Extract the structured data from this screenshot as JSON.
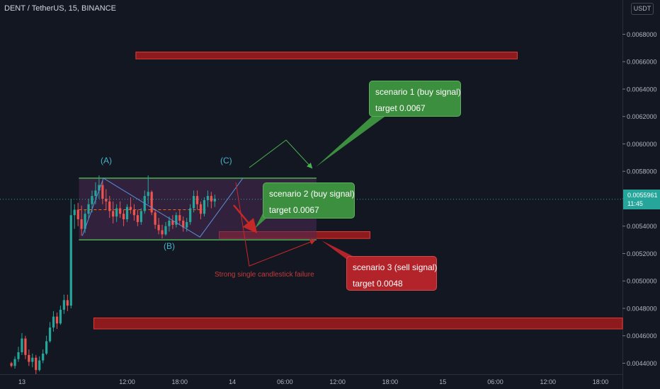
{
  "header": {
    "title": "DENT / TetherUS, 15, BINANCE",
    "currency": "USDT"
  },
  "price_label": {
    "value": "0.0055961",
    "countdown": "11:45",
    "color": "#26a69a"
  },
  "colors": {
    "background": "#131722",
    "up": "#26a69a",
    "down": "#ef5350",
    "zone": "#b71c1c",
    "box": "#4a2a52",
    "channel": "#4caf50",
    "wave_label": "#48b2c9",
    "failure_text": "#c23a3a"
  },
  "annotations": {
    "wave_labels": [
      "(A)",
      "(B)",
      "(C)"
    ],
    "failure_note": "Strong single candlestick failure",
    "scenarios": [
      {
        "title": "scenario 1 (buy signal)",
        "target": "target 0.0067",
        "color": "#3c8f3e"
      },
      {
        "title": "scenario 2 (buy signal)",
        "target": "target 0.0067",
        "color": "#3c8f3e"
      },
      {
        "title": "scenario 3 (sell signal)",
        "target": "target   0.0048",
        "color": "#b2232a"
      }
    ]
  },
  "chart_data": {
    "type": "candlestick",
    "symbol": "DENT / TetherUS",
    "interval": "15",
    "exchange": "BINANCE",
    "y_ticks": [
      "0.0044000",
      "0.0046000",
      "0.0048000",
      "0.0050000",
      "0.0052000",
      "0.0054000",
      "0.0056000",
      "0.0058000",
      "0.0060000",
      "0.0062000",
      "0.0064000",
      "0.0066000",
      "0.0068000"
    ],
    "y_range": [
      0.00432,
      0.00705
    ],
    "x_ticks": [
      "13",
      "12:00",
      "18:00",
      "14",
      "06:00",
      "12:00",
      "18:00",
      "15",
      "06:00",
      "12:00",
      "18:00"
    ],
    "x_tick_hours": [
      0,
      12,
      18,
      24,
      30,
      36,
      42,
      48,
      54,
      60,
      66
    ],
    "x_range_hours": [
      -2.5,
      68.5
    ],
    "last_price": 0.0055961,
    "zones": [
      {
        "type": "resistance",
        "x": [
          13,
          56.5
        ],
        "y": [
          0.00662,
          0.00667
        ]
      },
      {
        "type": "support",
        "x": [
          22.5,
          39.7
        ],
        "y": [
          0.00531,
          0.00536
        ]
      },
      {
        "type": "support",
        "x": [
          8.2,
          68.5
        ],
        "y": [
          0.00465,
          0.00473
        ]
      }
    ],
    "channel": {
      "x": [
        6.5,
        33.6
      ],
      "top": 0.00575,
      "bottom": 0.0053,
      "midline": 0.00552
    },
    "wave_points": [
      {
        "label": "(A)",
        "time_h": 9.3,
        "price": 0.00575
      },
      {
        "label": "(B)",
        "time_h": 20.3,
        "price": 0.00532
      },
      {
        "label": "(C)",
        "time_h": 25.2,
        "price": 0.00575
      }
    ],
    "series": [
      {
        "name": "DENT / TetherUS",
        "ohlc": [
          [
            0.0044,
            0.00441,
            0.00437,
            0.00438
          ],
          [
            0.00438,
            0.00445,
            0.00436,
            0.00443
          ],
          [
            0.00443,
            0.00452,
            0.00441,
            0.00448
          ],
          [
            0.00448,
            0.00462,
            0.00446,
            0.00458
          ],
          [
            0.00458,
            0.0046,
            0.00443,
            0.00446
          ],
          [
            0.00446,
            0.0045,
            0.00438,
            0.00441
          ],
          [
            0.00441,
            0.00447,
            0.00437,
            0.00444
          ],
          [
            0.00444,
            0.00446,
            0.00432,
            0.00435
          ],
          [
            0.00435,
            0.00445,
            0.00434,
            0.00442
          ],
          [
            0.00442,
            0.0045,
            0.0044,
            0.00447
          ],
          [
            0.00447,
            0.0046,
            0.00446,
            0.00456
          ],
          [
            0.00456,
            0.0047,
            0.00455,
            0.00466
          ],
          [
            0.00466,
            0.00478,
            0.00463,
            0.00474
          ],
          [
            0.00474,
            0.00477,
            0.00465,
            0.00469
          ],
          [
            0.00469,
            0.00482,
            0.00468,
            0.00479
          ],
          [
            0.00479,
            0.0049,
            0.00476,
            0.00486
          ],
          [
            0.00486,
            0.0049,
            0.00478,
            0.00482
          ],
          [
            0.00482,
            0.0056,
            0.0048,
            0.00548
          ],
          [
            0.00548,
            0.00556,
            0.00538,
            0.00552
          ],
          [
            0.00552,
            0.00557,
            0.0054,
            0.00545
          ],
          [
            0.00545,
            0.00555,
            0.00533,
            0.00538
          ],
          [
            0.00538,
            0.00552,
            0.00535,
            0.00549
          ],
          [
            0.00549,
            0.0056,
            0.00545,
            0.00556
          ],
          [
            0.00556,
            0.00566,
            0.0055,
            0.00562
          ],
          [
            0.00562,
            0.00572,
            0.00556,
            0.00566
          ],
          [
            0.00566,
            0.00577,
            0.0056,
            0.0057
          ],
          [
            0.0057,
            0.00573,
            0.00556,
            0.0056
          ],
          [
            0.0056,
            0.00567,
            0.00552,
            0.00558
          ],
          [
            0.00558,
            0.00562,
            0.00546,
            0.00551
          ],
          [
            0.00551,
            0.00558,
            0.00542,
            0.00547
          ],
          [
            0.00547,
            0.00556,
            0.00543,
            0.00553
          ],
          [
            0.00553,
            0.00558,
            0.00546,
            0.00549
          ],
          [
            0.00549,
            0.00552,
            0.0054,
            0.00545
          ],
          [
            0.00545,
            0.00556,
            0.00543,
            0.00554
          ],
          [
            0.00554,
            0.00561,
            0.00549,
            0.00552
          ],
          [
            0.00552,
            0.00556,
            0.00544,
            0.00548
          ],
          [
            0.00548,
            0.00552,
            0.0054,
            0.00543
          ],
          [
            0.00543,
            0.00553,
            0.00541,
            0.00551
          ],
          [
            0.00551,
            0.00566,
            0.00549,
            0.00562
          ],
          [
            0.00562,
            0.00577,
            0.00556,
            0.00565
          ],
          [
            0.00565,
            0.00566,
            0.00548,
            0.0055
          ],
          [
            0.0055,
            0.00552,
            0.00538,
            0.00541
          ],
          [
            0.00541,
            0.00546,
            0.00534,
            0.00537
          ],
          [
            0.00537,
            0.00541,
            0.00531,
            0.00534
          ],
          [
            0.00534,
            0.00543,
            0.00533,
            0.0054
          ],
          [
            0.0054,
            0.00547,
            0.00536,
            0.00544
          ],
          [
            0.00544,
            0.00548,
            0.00538,
            0.00541
          ],
          [
            0.00541,
            0.0055,
            0.00539,
            0.00548
          ],
          [
            0.00548,
            0.00552,
            0.00541,
            0.00544
          ],
          [
            0.00544,
            0.00547,
            0.00536,
            0.00539
          ],
          [
            0.00539,
            0.00546,
            0.00536,
            0.00543
          ],
          [
            0.00543,
            0.00556,
            0.00541,
            0.00553
          ],
          [
            0.00553,
            0.00566,
            0.0055,
            0.00562
          ],
          [
            0.00562,
            0.00566,
            0.00552,
            0.00556
          ],
          [
            0.00556,
            0.00558,
            0.00545,
            0.00549
          ],
          [
            0.00549,
            0.00561,
            0.00547,
            0.00559
          ],
          [
            0.00559,
            0.00566,
            0.00554,
            0.00562
          ],
          [
            0.00562,
            0.00565,
            0.00553,
            0.00558
          ],
          [
            0.00558,
            0.00563,
            0.00554,
            0.0056
          ]
        ]
      }
    ]
  }
}
